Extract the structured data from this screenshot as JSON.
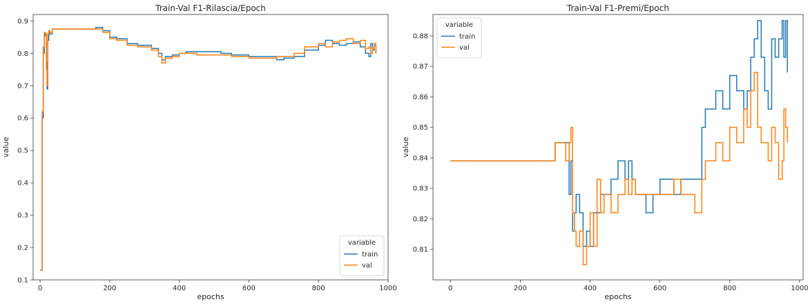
{
  "chart_data": [
    {
      "type": "line",
      "title": "Train-Val F1-Rilascia/Epoch",
      "xlabel": "epochs",
      "ylabel": "value",
      "xlim": [
        -20,
        1000
      ],
      "ylim": [
        0.1,
        0.92
      ],
      "xticks": [
        0,
        200,
        400,
        600,
        800,
        1000
      ],
      "yticks": [
        0.1,
        0.2,
        0.3,
        0.4,
        0.5,
        0.6,
        0.7,
        0.8,
        0.9
      ],
      "grid": false,
      "legend": {
        "title": "variable",
        "location": "lower-right"
      },
      "series": [
        {
          "name": "train",
          "color": "#1f77b4",
          "x": [
            0,
            3,
            6,
            9,
            12,
            15,
            18,
            20,
            22,
            25,
            28,
            35,
            60,
            100,
            150,
            160,
            170,
            180,
            200,
            220,
            250,
            280,
            320,
            340,
            350,
            360,
            380,
            400,
            420,
            450,
            500,
            520,
            550,
            600,
            650,
            680,
            700,
            730,
            760,
            800,
            820,
            840,
            860,
            880,
            900,
            920,
            935,
            945,
            950,
            955,
            960,
            965
          ],
          "y": [
            0.13,
            0.13,
            0.6,
            0.8,
            0.86,
            0.855,
            0.77,
            0.69,
            0.84,
            0.87,
            0.86,
            0.875,
            0.875,
            0.875,
            0.875,
            0.88,
            0.88,
            0.87,
            0.85,
            0.845,
            0.83,
            0.825,
            0.815,
            0.8,
            0.78,
            0.79,
            0.795,
            0.8,
            0.805,
            0.805,
            0.805,
            0.8,
            0.795,
            0.79,
            0.79,
            0.78,
            0.785,
            0.79,
            0.81,
            0.825,
            0.84,
            0.83,
            0.825,
            0.83,
            0.835,
            0.82,
            0.8,
            0.79,
            0.83,
            0.81,
            0.825,
            0.8
          ]
        },
        {
          "name": "val",
          "color": "#ff7f0e",
          "x": [
            0,
            3,
            6,
            9,
            12,
            15,
            18,
            20,
            22,
            25,
            28,
            35,
            60,
            100,
            150,
            160,
            170,
            180,
            200,
            220,
            250,
            280,
            320,
            340,
            350,
            360,
            380,
            400,
            420,
            450,
            500,
            520,
            550,
            600,
            650,
            680,
            700,
            730,
            760,
            800,
            820,
            840,
            860,
            880,
            900,
            920,
            935,
            945,
            950,
            955,
            960,
            965
          ],
          "y": [
            0.13,
            0.13,
            0.62,
            0.82,
            0.865,
            0.86,
            0.75,
            0.7,
            0.86,
            0.87,
            0.865,
            0.875,
            0.875,
            0.875,
            0.875,
            0.875,
            0.875,
            0.865,
            0.845,
            0.84,
            0.825,
            0.82,
            0.81,
            0.79,
            0.77,
            0.785,
            0.79,
            0.8,
            0.8,
            0.795,
            0.795,
            0.795,
            0.79,
            0.785,
            0.785,
            0.79,
            0.79,
            0.8,
            0.82,
            0.83,
            0.82,
            0.835,
            0.84,
            0.845,
            0.83,
            0.84,
            0.815,
            0.82,
            0.8,
            0.815,
            0.83,
            0.8
          ]
        }
      ]
    },
    {
      "type": "line",
      "title": "Train-Val F1-Premi/Epoch",
      "xlabel": "epochs",
      "ylabel": "value",
      "xlim": [
        -50,
        1010
      ],
      "ylim": [
        0.8,
        0.887
      ],
      "xticks": [
        0,
        200,
        400,
        600,
        800,
        1000
      ],
      "yticks": [
        0.81,
        0.82,
        0.83,
        0.84,
        0.85,
        0.86,
        0.87,
        0.88
      ],
      "grid": false,
      "legend": {
        "title": "variable",
        "location": "upper-left"
      },
      "series": [
        {
          "name": "train",
          "color": "#1f77b4",
          "x": [
            0,
            100,
            200,
            290,
            300,
            320,
            330,
            340,
            345,
            350,
            355,
            360,
            370,
            380,
            390,
            400,
            410,
            420,
            430,
            440,
            460,
            480,
            500,
            510,
            520,
            530,
            540,
            560,
            580,
            600,
            620,
            640,
            660,
            680,
            700,
            720,
            730,
            740,
            760,
            780,
            800,
            820,
            840,
            850,
            860,
            870,
            880,
            890,
            900,
            910,
            920,
            930,
            940,
            950,
            955,
            960,
            965
          ],
          "y": [
            0.839,
            0.839,
            0.839,
            0.839,
            0.845,
            0.845,
            0.845,
            0.828,
            0.839,
            0.816,
            0.822,
            0.828,
            0.822,
            0.811,
            0.816,
            0.811,
            0.822,
            0.822,
            0.828,
            0.828,
            0.833,
            0.839,
            0.833,
            0.839,
            0.833,
            0.828,
            0.828,
            0.822,
            0.828,
            0.833,
            0.833,
            0.828,
            0.833,
            0.833,
            0.833,
            0.85,
            0.856,
            0.856,
            0.862,
            0.856,
            0.867,
            0.862,
            0.856,
            0.862,
            0.873,
            0.879,
            0.885,
            0.873,
            0.862,
            0.856,
            0.879,
            0.873,
            0.879,
            0.885,
            0.873,
            0.885,
            0.868
          ]
        },
        {
          "name": "val",
          "color": "#ff7f0e",
          "x": [
            0,
            100,
            200,
            290,
            300,
            320,
            330,
            340,
            345,
            350,
            355,
            360,
            370,
            380,
            390,
            400,
            410,
            420,
            430,
            440,
            460,
            480,
            500,
            510,
            520,
            530,
            540,
            560,
            580,
            600,
            620,
            640,
            660,
            680,
            700,
            720,
            730,
            740,
            760,
            780,
            800,
            820,
            840,
            850,
            860,
            870,
            880,
            890,
            900,
            910,
            920,
            930,
            940,
            950,
            955,
            960,
            965
          ],
          "y": [
            0.839,
            0.839,
            0.839,
            0.839,
            0.845,
            0.845,
            0.839,
            0.845,
            0.85,
            0.822,
            0.816,
            0.811,
            0.816,
            0.805,
            0.811,
            0.822,
            0.811,
            0.833,
            0.822,
            0.828,
            0.822,
            0.828,
            0.833,
            0.828,
            0.833,
            0.828,
            0.828,
            0.828,
            0.828,
            0.828,
            0.828,
            0.833,
            0.828,
            0.828,
            0.822,
            0.833,
            0.839,
            0.839,
            0.845,
            0.839,
            0.85,
            0.845,
            0.856,
            0.85,
            0.862,
            0.868,
            0.85,
            0.845,
            0.845,
            0.839,
            0.85,
            0.845,
            0.833,
            0.839,
            0.856,
            0.85,
            0.845
          ]
        }
      ]
    }
  ]
}
